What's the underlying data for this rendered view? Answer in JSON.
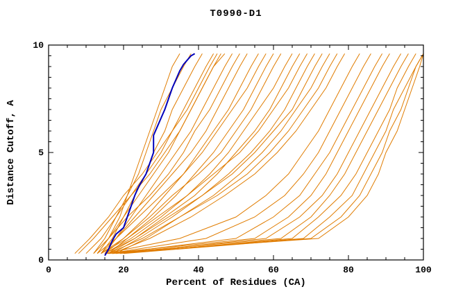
{
  "chart_data": {
    "type": "line",
    "title": "T0990-D1",
    "xlabel": "Percent of Residues (CA)",
    "ylabel": "Distance Cutoff, A",
    "xlim": [
      0,
      100
    ],
    "ylim": [
      0,
      10
    ],
    "x_major_ticks": [
      0,
      20,
      40,
      60,
      80,
      100
    ],
    "x_minor_step": 5,
    "y_major_ticks": [
      0,
      5,
      10
    ],
    "y_minor_step": 0.5,
    "orange_color": "#e07c00",
    "blue_color": "#0000bb",
    "axis_color": "#000000",
    "background_color": "#ffffff",
    "legend": "none",
    "grid": "off",
    "y_levels": [
      0.3,
      1,
      2,
      3,
      4,
      5,
      6,
      7,
      8,
      9,
      9.6
    ],
    "orange_series": [
      [
        13,
        16,
        19,
        21,
        23,
        25,
        27,
        29,
        31,
        33,
        35
      ],
      [
        12,
        15,
        18,
        21,
        24,
        26,
        28,
        30,
        33,
        36,
        38
      ],
      [
        14,
        17,
        20,
        23,
        26,
        28,
        31,
        33,
        36,
        39,
        41
      ],
      [
        10,
        14,
        18,
        22,
        26,
        30,
        33,
        36,
        39,
        42,
        44
      ],
      [
        13,
        16,
        20,
        24,
        28,
        32,
        35,
        38,
        41,
        44,
        46
      ],
      [
        15,
        18,
        22,
        26,
        30,
        34,
        38,
        41,
        44,
        47,
        49
      ],
      [
        12,
        16,
        21,
        27,
        32,
        36,
        39,
        43,
        46,
        49,
        51
      ],
      [
        14,
        18,
        23,
        28,
        33,
        38,
        42,
        45,
        48,
        51,
        53
      ],
      [
        15,
        20,
        26,
        31,
        36,
        40,
        44,
        48,
        51,
        54,
        56
      ],
      [
        13,
        18,
        24,
        30,
        36,
        41,
        45,
        49,
        53,
        56,
        58
      ],
      [
        16,
        21,
        28,
        34,
        39,
        44,
        48,
        52,
        55,
        58,
        60
      ],
      [
        14,
        20,
        27,
        33,
        40,
        46,
        50,
        54,
        57,
        60,
        62
      ],
      [
        15,
        22,
        30,
        37,
        43,
        48,
        52,
        56,
        60,
        63,
        65
      ],
      [
        16,
        23,
        31,
        39,
        45,
        50,
        55,
        59,
        62,
        65,
        67
      ],
      [
        14,
        21,
        29,
        37,
        44,
        51,
        56,
        60,
        64,
        67,
        69
      ],
      [
        17,
        24,
        33,
        41,
        48,
        54,
        59,
        63,
        66,
        69,
        71
      ],
      [
        15,
        23,
        32,
        41,
        49,
        55,
        60,
        65,
        68,
        71,
        73
      ],
      [
        18,
        26,
        35,
        44,
        51,
        57,
        62,
        66,
        70,
        73,
        75
      ],
      [
        16,
        25,
        35,
        45,
        53,
        59,
        64,
        68,
        72,
        75,
        77
      ],
      [
        17,
        27,
        38,
        47,
        55,
        61,
        66,
        70,
        74,
        77,
        79
      ],
      [
        8,
        12,
        17,
        22,
        27,
        31,
        35,
        38,
        41,
        44,
        47
      ],
      [
        7,
        11,
        16,
        20,
        25,
        29,
        33,
        37,
        40,
        43,
        45
      ],
      [
        15,
        35,
        50,
        58,
        64,
        68,
        72,
        75,
        78,
        81,
        83
      ],
      [
        16,
        42,
        55,
        63,
        68,
        72,
        75,
        78,
        81,
        84,
        86
      ],
      [
        17,
        50,
        60,
        67,
        71,
        75,
        78,
        81,
        84,
        87,
        89
      ],
      [
        15,
        55,
        64,
        70,
        74,
        77,
        80,
        83,
        86,
        89,
        91
      ],
      [
        18,
        58,
        67,
        73,
        77,
        80,
        83,
        86,
        89,
        92,
        94
      ],
      [
        16,
        62,
        70,
        75,
        79,
        82,
        85,
        88,
        91,
        94,
        96
      ],
      [
        19,
        65,
        72,
        78,
        82,
        85,
        88,
        91,
        93,
        96,
        98
      ],
      [
        17,
        68,
        75,
        81,
        84,
        87,
        90,
        92,
        95,
        98,
        100
      ],
      [
        20,
        70,
        78,
        83,
        86,
        89,
        91,
        94,
        96,
        98,
        100
      ],
      [
        15,
        72,
        80,
        85,
        88,
        90,
        93,
        95,
        97,
        99,
        100
      ]
    ],
    "blue_series": [
      [
        15,
        0.2
      ],
      [
        16,
        0.5
      ],
      [
        17,
        0.9
      ],
      [
        18,
        1.2
      ],
      [
        20,
        1.5
      ],
      [
        21,
        2.0
      ],
      [
        22,
        2.5
      ],
      [
        23,
        3.0
      ],
      [
        24,
        3.4
      ],
      [
        25,
        3.7
      ],
      [
        26,
        4.0
      ],
      [
        27,
        4.5
      ],
      [
        28,
        5.0
      ],
      [
        28,
        5.8
      ],
      [
        29,
        6.2
      ],
      [
        30,
        6.6
      ],
      [
        31,
        7.0
      ],
      [
        32,
        7.5
      ],
      [
        33,
        8.0
      ],
      [
        34,
        8.4
      ],
      [
        35,
        8.8
      ],
      [
        36,
        9.1
      ],
      [
        37,
        9.3
      ],
      [
        38,
        9.5
      ],
      [
        39,
        9.6
      ]
    ]
  }
}
